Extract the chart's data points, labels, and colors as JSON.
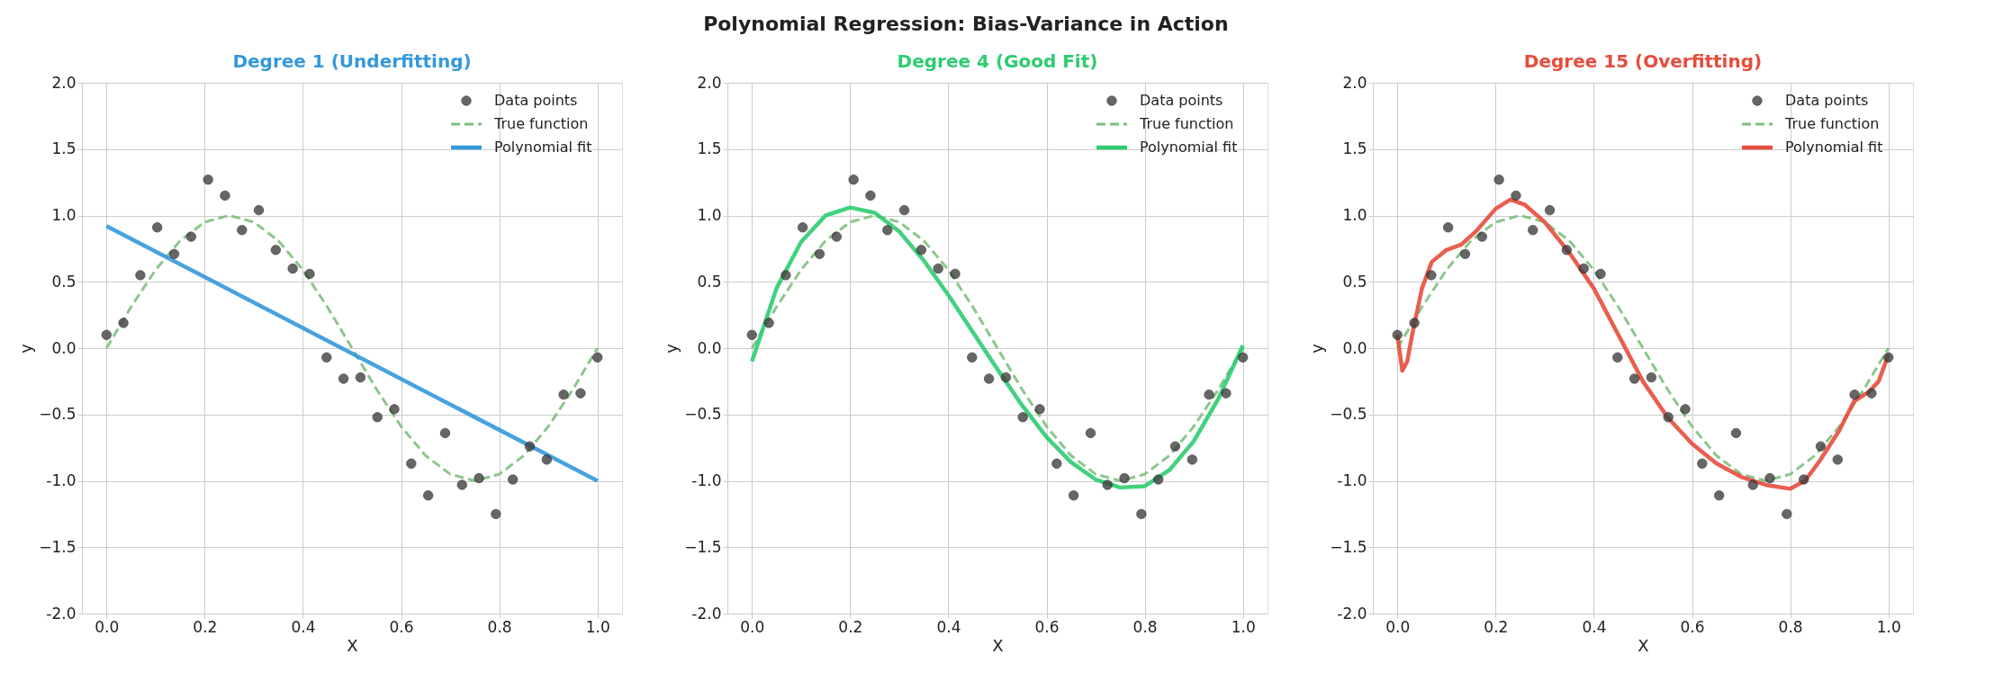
{
  "chart_data": [
    {
      "type": "scatter",
      "title": "Degree 1 (Underfitting)",
      "xlabel": "X",
      "ylabel": "y",
      "annotations": [
        "Polynomial Regression: Bias-Variance in Action"
      ],
      "xlim": [
        -0.05,
        1.05
      ],
      "ylim": [
        -2,
        2
      ],
      "xticks": [
        {
          "value": 0,
          "label": "0.0"
        },
        {
          "value": 0.2,
          "label": "0.2"
        },
        {
          "value": 0.4,
          "label": "0.4"
        },
        {
          "value": 0.6,
          "label": "0.6"
        },
        {
          "value": 0.8,
          "label": "0.8"
        },
        {
          "value": 1,
          "label": "1.0"
        }
      ],
      "yticks": [
        {
          "value": -2,
          "label": "-2.0"
        },
        -1.5,
        {
          "value": -1,
          "label": "-1.0"
        },
        -0.5,
        {
          "value": 0,
          "label": "0.0"
        },
        0.5,
        {
          "value": 1,
          "label": "1.0"
        },
        1.5,
        {
          "value": 2,
          "label": "2.0"
        }
      ],
      "grid": true,
      "legend": "top right",
      "series": [
        {
          "name": "Data points",
          "marker": "circle",
          "color": "#404040",
          "x": [
            0,
            0.0345,
            0.069,
            0.1034,
            0.1379,
            0.1724,
            0.2069,
            0.2414,
            0.2759,
            0.3103,
            0.3448,
            0.3793,
            0.4138,
            0.4483,
            0.4828,
            0.5172,
            0.5517,
            0.5862,
            0.6207,
            0.6552,
            0.6897,
            0.7241,
            0.7586,
            0.7931,
            0.8276,
            0.8621,
            0.8966,
            0.931,
            0.9655,
            1
          ],
          "values": [
            0.1,
            0.19,
            0.55,
            0.91,
            0.71,
            0.84,
            1.27,
            1.15,
            0.89,
            1.04,
            0.74,
            0.6,
            0.56,
            -0.07,
            -0.23,
            -0.22,
            -0.52,
            -0.46,
            -0.87,
            -1.11,
            -0.64,
            -1.03,
            -0.98,
            -1.25,
            -0.99,
            -0.74,
            -0.84,
            -0.35,
            -0.34,
            -0.07
          ]
        },
        {
          "name": "True function",
          "type": "line",
          "line_style": "dashed",
          "color": "#7fbf7f",
          "x": [
            0,
            0.05,
            0.1,
            0.15,
            0.2,
            0.25,
            0.3,
            0.35,
            0.4,
            0.45,
            0.5,
            0.55,
            0.6,
            0.65,
            0.7,
            0.75,
            0.8,
            0.85,
            0.9,
            0.95,
            1
          ],
          "values": [
            0,
            0.31,
            0.59,
            0.81,
            0.95,
            1.0,
            0.95,
            0.81,
            0.59,
            0.31,
            0,
            -0.31,
            -0.59,
            -0.81,
            -0.95,
            -1.0,
            -0.95,
            -0.81,
            -0.59,
            -0.31,
            0
          ]
        },
        {
          "name": "Polynomial fit",
          "type": "line",
          "line_style": "solid",
          "color": "#3498db",
          "x": [
            0,
            1
          ],
          "values": [
            0.92,
            -1.0
          ]
        }
      ]
    },
    {
      "type": "scatter",
      "title": "Degree 4 (Good Fit)",
      "xlabel": "X",
      "ylabel": "y",
      "xlim": [
        -0.05,
        1.05
      ],
      "ylim": [
        -2,
        2
      ],
      "xticks": [
        {
          "value": 0,
          "label": "0.0"
        },
        {
          "value": 0.2,
          "label": "0.2"
        },
        {
          "value": 0.4,
          "label": "0.4"
        },
        {
          "value": 0.6,
          "label": "0.6"
        },
        {
          "value": 0.8,
          "label": "0.8"
        },
        {
          "value": 1,
          "label": "1.0"
        }
      ],
      "yticks": [
        {
          "value": -2,
          "label": "-2.0"
        },
        -1.5,
        {
          "value": -1,
          "label": "-1.0"
        },
        -0.5,
        {
          "value": 0,
          "label": "0.0"
        },
        0.5,
        {
          "value": 1,
          "label": "1.0"
        },
        1.5,
        {
          "value": 2,
          "label": "2.0"
        }
      ],
      "grid": true,
      "legend": "top right",
      "series": [
        {
          "name": "Data points",
          "marker": "circle",
          "color": "#404040",
          "x": [
            0,
            0.0345,
            0.069,
            0.1034,
            0.1379,
            0.1724,
            0.2069,
            0.2414,
            0.2759,
            0.3103,
            0.3448,
            0.3793,
            0.4138,
            0.4483,
            0.4828,
            0.5172,
            0.5517,
            0.5862,
            0.6207,
            0.6552,
            0.6897,
            0.7241,
            0.7586,
            0.7931,
            0.8276,
            0.8621,
            0.8966,
            0.931,
            0.9655,
            1
          ],
          "values": [
            0.1,
            0.19,
            0.55,
            0.91,
            0.71,
            0.84,
            1.27,
            1.15,
            0.89,
            1.04,
            0.74,
            0.6,
            0.56,
            -0.07,
            -0.23,
            -0.22,
            -0.52,
            -0.46,
            -0.87,
            -1.11,
            -0.64,
            -1.03,
            -0.98,
            -1.25,
            -0.99,
            -0.74,
            -0.84,
            -0.35,
            -0.34,
            -0.07
          ]
        },
        {
          "name": "True function",
          "type": "line",
          "line_style": "dashed",
          "color": "#7fbf7f",
          "x": [
            0,
            0.05,
            0.1,
            0.15,
            0.2,
            0.25,
            0.3,
            0.35,
            0.4,
            0.45,
            0.5,
            0.55,
            0.6,
            0.65,
            0.7,
            0.75,
            0.8,
            0.85,
            0.9,
            0.95,
            1
          ],
          "values": [
            0,
            0.31,
            0.59,
            0.81,
            0.95,
            1.0,
            0.95,
            0.81,
            0.59,
            0.31,
            0,
            -0.31,
            -0.59,
            -0.81,
            -0.95,
            -1.0,
            -0.95,
            -0.81,
            -0.59,
            -0.31,
            0
          ]
        },
        {
          "name": "Polynomial fit",
          "type": "line",
          "line_style": "solid",
          "color": "#2ecc71",
          "x": [
            0,
            0.05,
            0.1,
            0.15,
            0.2,
            0.25,
            0.3,
            0.35,
            0.4,
            0.45,
            0.5,
            0.55,
            0.6,
            0.65,
            0.7,
            0.75,
            0.8,
            0.85,
            0.9,
            0.95,
            1
          ],
          "values": [
            -0.1,
            0.45,
            0.8,
            1.0,
            1.06,
            1.02,
            0.88,
            0.66,
            0.4,
            0.12,
            -0.16,
            -0.43,
            -0.67,
            -0.86,
            -0.99,
            -1.05,
            -1.04,
            -0.92,
            -0.7,
            -0.38,
            0.02
          ]
        }
      ]
    },
    {
      "type": "scatter",
      "title": "Degree 15 (Overfitting)",
      "xlabel": "X",
      "ylabel": "y",
      "xlim": [
        -0.05,
        1.05
      ],
      "ylim": [
        -2,
        2
      ],
      "xticks": [
        {
          "value": 0,
          "label": "0.0"
        },
        {
          "value": 0.2,
          "label": "0.2"
        },
        {
          "value": 0.4,
          "label": "0.4"
        },
        {
          "value": 0.6,
          "label": "0.6"
        },
        {
          "value": 0.8,
          "label": "0.8"
        },
        {
          "value": 1,
          "label": "1.0"
        }
      ],
      "yticks": [
        {
          "value": -2,
          "label": "-2.0"
        },
        -1.5,
        {
          "value": -1,
          "label": "-1.0"
        },
        -0.5,
        {
          "value": 0,
          "label": "0.0"
        },
        0.5,
        {
          "value": 1,
          "label": "1.0"
        },
        1.5,
        {
          "value": 2,
          "label": "2.0"
        }
      ],
      "grid": true,
      "legend": "top right",
      "series": [
        {
          "name": "Data points",
          "marker": "circle",
          "color": "#404040",
          "x": [
            0,
            0.0345,
            0.069,
            0.1034,
            0.1379,
            0.1724,
            0.2069,
            0.2414,
            0.2759,
            0.3103,
            0.3448,
            0.3793,
            0.4138,
            0.4483,
            0.4828,
            0.5172,
            0.5517,
            0.5862,
            0.6207,
            0.6552,
            0.6897,
            0.7241,
            0.7586,
            0.7931,
            0.8276,
            0.8621,
            0.8966,
            0.931,
            0.9655,
            1
          ],
          "values": [
            0.1,
            0.19,
            0.55,
            0.91,
            0.71,
            0.84,
            1.27,
            1.15,
            0.89,
            1.04,
            0.74,
            0.6,
            0.56,
            -0.07,
            -0.23,
            -0.22,
            -0.52,
            -0.46,
            -0.87,
            -1.11,
            -0.64,
            -1.03,
            -0.98,
            -1.25,
            -0.99,
            -0.74,
            -0.84,
            -0.35,
            -0.34,
            -0.07
          ]
        },
        {
          "name": "True function",
          "type": "line",
          "line_style": "dashed",
          "color": "#7fbf7f",
          "x": [
            0,
            0.05,
            0.1,
            0.15,
            0.2,
            0.25,
            0.3,
            0.35,
            0.4,
            0.45,
            0.5,
            0.55,
            0.6,
            0.65,
            0.7,
            0.75,
            0.8,
            0.85,
            0.9,
            0.95,
            1
          ],
          "values": [
            0,
            0.31,
            0.59,
            0.81,
            0.95,
            1.0,
            0.95,
            0.81,
            0.59,
            0.31,
            0,
            -0.31,
            -0.59,
            -0.81,
            -0.95,
            -1.0,
            -0.95,
            -0.81,
            -0.59,
            -0.31,
            0
          ]
        },
        {
          "name": "Polynomial fit",
          "type": "line",
          "line_style": "solid",
          "color": "#e74c3c",
          "x": [
            0,
            0.01,
            0.02,
            0.03,
            0.05,
            0.07,
            0.1,
            0.13,
            0.16,
            0.2,
            0.23,
            0.26,
            0.3,
            0.35,
            0.4,
            0.45,
            0.5,
            0.55,
            0.6,
            0.65,
            0.7,
            0.75,
            0.8,
            0.83,
            0.86,
            0.9,
            0.93,
            0.96,
            0.98,
            1
          ],
          "values": [
            0.1,
            -0.17,
            -0.1,
            0.1,
            0.45,
            0.65,
            0.74,
            0.78,
            0.88,
            1.05,
            1.12,
            1.08,
            0.95,
            0.72,
            0.45,
            0.1,
            -0.25,
            -0.52,
            -0.72,
            -0.87,
            -0.97,
            -1.03,
            -1.06,
            -1.0,
            -0.85,
            -0.62,
            -0.4,
            -0.33,
            -0.25,
            -0.05
          ]
        }
      ]
    }
  ]
}
